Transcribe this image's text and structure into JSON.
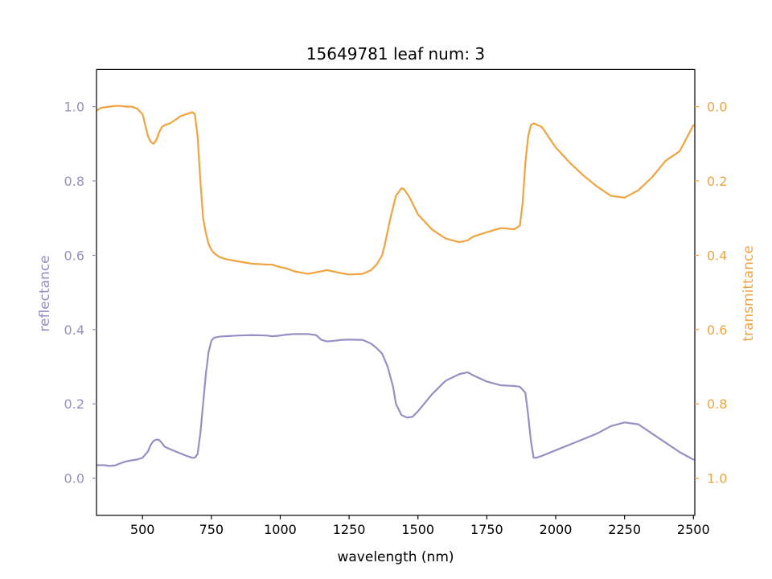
{
  "chart_data": {
    "type": "line",
    "title": "15649781 leaf num: 3",
    "xlabel": "wavelength (nm)",
    "ylabel_left": "reflectance",
    "ylabel_right": "transmittance",
    "xlim": [
      333,
      2505
    ],
    "ylim_left": [
      -0.1,
      1.1
    ],
    "ylim_right": [
      1.1,
      -0.1
    ],
    "x_ticks": [
      500,
      750,
      1000,
      1250,
      1500,
      1750,
      2000,
      2250,
      2500
    ],
    "y_ticks_left": [
      0.0,
      0.2,
      0.4,
      0.6,
      0.8,
      1.0
    ],
    "y_ticks_right": [
      0.0,
      0.2,
      0.4,
      0.6,
      0.8,
      1.0
    ],
    "grid": false,
    "colors": {
      "reflectance": "#998ec3",
      "transmittance": "#f1a340"
    },
    "series": [
      {
        "name": "reflectance",
        "axis": "left",
        "color": "#998ec3",
        "x": [
          335,
          360,
          380,
          400,
          420,
          440,
          460,
          480,
          500,
          520,
          530,
          540,
          550,
          560,
          570,
          580,
          600,
          620,
          640,
          660,
          680,
          690,
          700,
          710,
          720,
          730,
          740,
          750,
          760,
          780,
          800,
          850,
          900,
          950,
          970,
          990,
          1000,
          1020,
          1050,
          1100,
          1130,
          1150,
          1170,
          1200,
          1220,
          1250,
          1300,
          1330,
          1350,
          1370,
          1390,
          1410,
          1420,
          1440,
          1460,
          1480,
          1500,
          1550,
          1600,
          1650,
          1680,
          1700,
          1750,
          1800,
          1850,
          1870,
          1890,
          1900,
          1910,
          1920,
          1930,
          1950,
          2000,
          2050,
          2100,
          2150,
          2200,
          2250,
          2300,
          2350,
          2400,
          2450,
          2500
        ],
        "y": [
          0.035,
          0.035,
          0.033,
          0.034,
          0.04,
          0.045,
          0.048,
          0.05,
          0.055,
          0.072,
          0.09,
          0.1,
          0.104,
          0.103,
          0.095,
          0.085,
          0.078,
          0.072,
          0.066,
          0.06,
          0.055,
          0.055,
          0.065,
          0.12,
          0.2,
          0.28,
          0.34,
          0.37,
          0.378,
          0.381,
          0.382,
          0.384,
          0.385,
          0.384,
          0.382,
          0.383,
          0.384,
          0.386,
          0.388,
          0.388,
          0.385,
          0.372,
          0.368,
          0.37,
          0.372,
          0.373,
          0.372,
          0.362,
          0.35,
          0.335,
          0.3,
          0.245,
          0.2,
          0.17,
          0.163,
          0.165,
          0.18,
          0.225,
          0.262,
          0.28,
          0.285,
          0.277,
          0.26,
          0.25,
          0.248,
          0.246,
          0.23,
          0.17,
          0.1,
          0.055,
          0.055,
          0.06,
          0.075,
          0.09,
          0.105,
          0.12,
          0.14,
          0.15,
          0.145,
          0.12,
          0.095,
          0.07,
          0.05
        ]
      },
      {
        "name": "transmittance",
        "axis": "right",
        "color": "#f1a340",
        "x": [
          335,
          350,
          380,
          400,
          420,
          440,
          460,
          480,
          500,
          510,
          520,
          530,
          540,
          550,
          560,
          570,
          580,
          600,
          620,
          640,
          660,
          680,
          690,
          700,
          710,
          720,
          730,
          740,
          750,
          760,
          780,
          800,
          850,
          900,
          950,
          970,
          990,
          1000,
          1020,
          1050,
          1100,
          1150,
          1170,
          1200,
          1220,
          1250,
          1300,
          1330,
          1350,
          1370,
          1380,
          1400,
          1420,
          1440,
          1450,
          1470,
          1500,
          1550,
          1600,
          1650,
          1680,
          1700,
          1750,
          1800,
          1850,
          1870,
          1880,
          1890,
          1900,
          1910,
          1920,
          1950,
          2000,
          2050,
          2100,
          2150,
          2200,
          2250,
          2300,
          2350,
          2400,
          2450,
          2500
        ],
        "y": [
          0.01,
          0.003,
          0.0,
          -0.002,
          -0.002,
          0.0,
          0.0,
          0.005,
          0.02,
          0.05,
          0.08,
          0.095,
          0.1,
          0.09,
          0.07,
          0.055,
          0.05,
          0.045,
          0.035,
          0.025,
          0.02,
          0.015,
          0.02,
          0.08,
          0.2,
          0.3,
          0.34,
          0.37,
          0.385,
          0.395,
          0.405,
          0.41,
          0.417,
          0.423,
          0.425,
          0.425,
          0.43,
          0.432,
          0.435,
          0.443,
          0.45,
          0.443,
          0.44,
          0.445,
          0.448,
          0.452,
          0.45,
          0.44,
          0.425,
          0.4,
          0.37,
          0.3,
          0.24,
          0.22,
          0.222,
          0.245,
          0.29,
          0.33,
          0.355,
          0.365,
          0.36,
          0.35,
          0.338,
          0.327,
          0.33,
          0.32,
          0.26,
          0.15,
          0.08,
          0.05,
          0.045,
          0.055,
          0.11,
          0.15,
          0.185,
          0.215,
          0.24,
          0.245,
          0.225,
          0.19,
          0.145,
          0.12,
          0.05
        ]
      }
    ]
  }
}
